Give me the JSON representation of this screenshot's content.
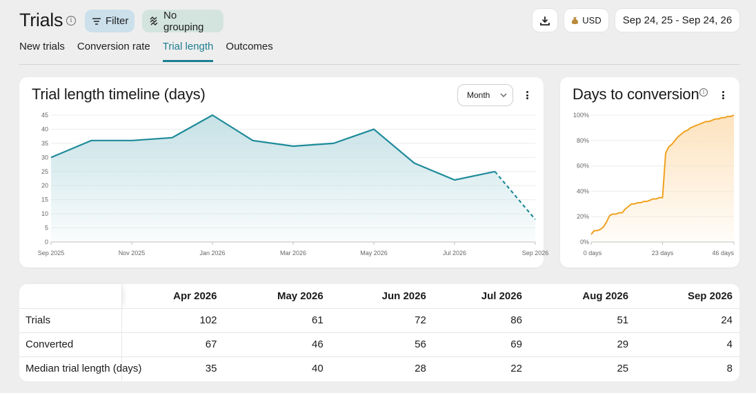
{
  "header": {
    "title": "Trials",
    "filter_label": "Filter",
    "grouping_label": "No grouping",
    "currency_label": "USD",
    "date_range": "Sep 24, 25 - Sep 24, 26"
  },
  "tabs": [
    {
      "label": "New trials",
      "active": false
    },
    {
      "label": "Conversion rate",
      "active": false
    },
    {
      "label": "Trial length",
      "active": true
    },
    {
      "label": "Outcomes",
      "active": false
    }
  ],
  "timeline": {
    "title": "Trial length timeline (days)",
    "granularity": "Month"
  },
  "conversion": {
    "title": "Days to conversion"
  },
  "chart_data": [
    {
      "type": "area",
      "title": "Trial length timeline (days)",
      "x": [
        "Sep 2025",
        "Oct 2025",
        "Nov 2025",
        "Dec 2025",
        "Jan 2026",
        "Feb 2026",
        "Mar 2026",
        "Apr 2026",
        "May 2026",
        "Jun 2026",
        "Jul 2026",
        "Aug 2026",
        "Sep 2026"
      ],
      "x_tick_labels": [
        "Sep 2025",
        "Nov 2025",
        "Jan 2026",
        "Mar 2026",
        "May 2026",
        "Jul 2026",
        "Sep 2026"
      ],
      "values": [
        30,
        36,
        36,
        37,
        45,
        36,
        34,
        35,
        40,
        28,
        22,
        25,
        8
      ],
      "incomplete_last_point": true,
      "y_ticks": [
        0,
        5,
        10,
        15,
        20,
        25,
        30,
        35,
        40,
        45
      ],
      "ylim": [
        0,
        45
      ],
      "grid": true,
      "colors": {
        "line": "#1d8a99",
        "fill": "#c3e0e5"
      }
    },
    {
      "type": "area",
      "title": "Days to conversion",
      "x_unit": "days",
      "x_tick_labels": [
        "0 days",
        "23 days",
        "46 days"
      ],
      "xlim": [
        0,
        46
      ],
      "x": [
        0,
        1,
        2,
        3,
        4,
        5,
        6,
        7,
        8,
        9,
        10,
        11,
        12,
        13,
        14,
        15,
        16,
        17,
        18,
        19,
        20,
        21,
        22,
        23,
        24,
        25,
        26,
        27,
        28,
        29,
        30,
        31,
        32,
        33,
        34,
        35,
        36,
        37,
        38,
        39,
        40,
        41,
        42,
        43,
        44,
        45,
        46
      ],
      "values": [
        6,
        9,
        9,
        10,
        12,
        16,
        21,
        22,
        22,
        23,
        23,
        26,
        28,
        30,
        30,
        31,
        31,
        32,
        32,
        33,
        34,
        34,
        35,
        35,
        70,
        75,
        77,
        80,
        83,
        85,
        87,
        88,
        90,
        91,
        92,
        93,
        94,
        95,
        95,
        96,
        97,
        97,
        98,
        98,
        99,
        99,
        100
      ],
      "y_ticks": [
        "0%",
        "20%",
        "40%",
        "60%",
        "80%",
        "100%"
      ],
      "ylim": [
        0,
        100
      ],
      "grid": true,
      "colors": {
        "line": "#f0a11e",
        "fill": "#fde3bf"
      }
    }
  ],
  "table": {
    "columns": [
      "Apr 2026",
      "May 2026",
      "Jun 2026",
      "Jul 2026",
      "Aug 2026",
      "Sep 2026"
    ],
    "rows": [
      {
        "label": "Trials",
        "values": [
          "102",
          "61",
          "72",
          "86",
          "51",
          "24"
        ]
      },
      {
        "label": "Converted",
        "values": [
          "67",
          "46",
          "56",
          "69",
          "29",
          "4"
        ]
      },
      {
        "label": "Median trial length (days)",
        "values": [
          "35",
          "40",
          "28",
          "22",
          "25",
          "8"
        ]
      }
    ]
  }
}
